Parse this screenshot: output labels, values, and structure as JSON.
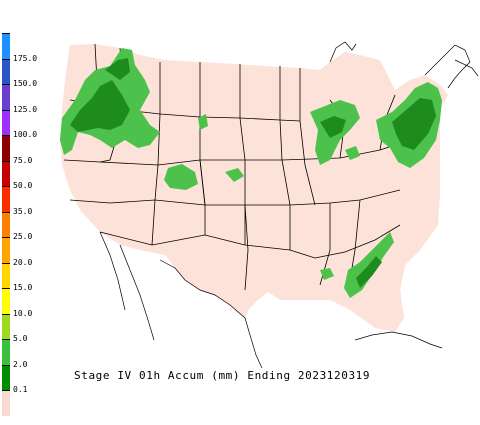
{
  "caption": "Stage IV 01h Accum (mm) Ending 2023120319",
  "legend": {
    "labels": [
      "175.0",
      "150.0",
      "125.0",
      "100.0",
      "75.0",
      "50.0",
      "35.0",
      "25.0",
      "20.0",
      "15.0",
      "10.0",
      "5.0",
      "2.0",
      "0.1"
    ],
    "colors": [
      "#1e90ff",
      "#2b56c8",
      "#6a3fd0",
      "#9b30ff",
      "#8b0000",
      "#c80000",
      "#ff2d00",
      "#ff7f00",
      "#ffa500",
      "#ffd700",
      "#ffff00",
      "#a0d81e",
      "#3cbf3c",
      "#008c00",
      "#f9d9d0"
    ],
    "no_data_color": "#f9d9d0"
  },
  "map": {
    "land_color": "#fde2da",
    "rain_light_color": "#4cc24c",
    "rain_heavy_color": "#1d8c1d",
    "boundary_color": "#000000"
  }
}
